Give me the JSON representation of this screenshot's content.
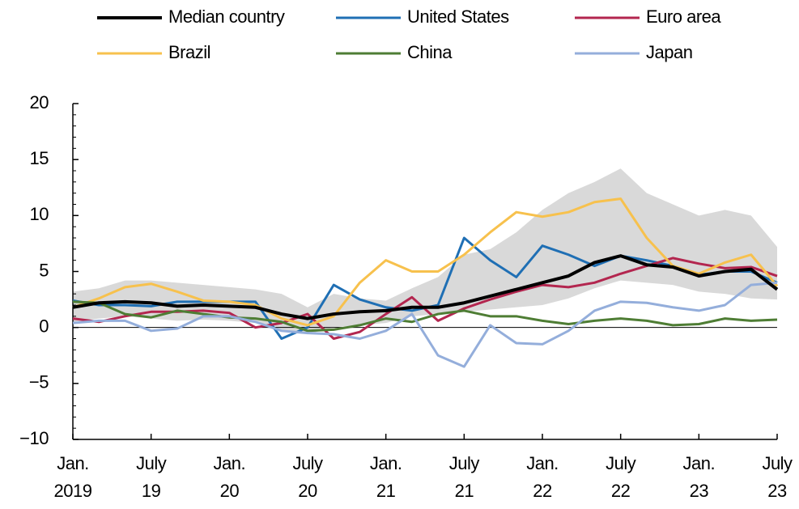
{
  "chart_data": {
    "type": "line",
    "x": [
      "2019-01",
      "2019-03",
      "2019-05",
      "2019-07",
      "2019-09",
      "2019-11",
      "2020-01",
      "2020-03",
      "2020-05",
      "2020-07",
      "2020-09",
      "2020-11",
      "2021-01",
      "2021-03",
      "2021-05",
      "2021-07",
      "2021-09",
      "2021-11",
      "2022-01",
      "2022-03",
      "2022-05",
      "2022-07",
      "2022-09",
      "2022-11",
      "2023-01",
      "2023-03",
      "2023-05",
      "2023-07"
    ],
    "band": {
      "color": "#d9d9d9",
      "upper": [
        3.2,
        3.5,
        4.2,
        4.2,
        4.0,
        3.8,
        3.6,
        3.4,
        3.0,
        1.8,
        3.0,
        2.6,
        2.4,
        3.5,
        4.5,
        6.5,
        7.0,
        8.5,
        10.5,
        12.0,
        13.0,
        14.2,
        12.0,
        11.0,
        10.0,
        10.5,
        10.0,
        7.2
      ],
      "lower": [
        0.5,
        0.8,
        1.0,
        0.8,
        0.6,
        0.7,
        0.6,
        0.4,
        -0.2,
        -0.6,
        0.0,
        0.2,
        0.4,
        1.0,
        1.2,
        1.4,
        1.6,
        1.8,
        2.0,
        2.6,
        3.5,
        4.2,
        4.0,
        3.8,
        3.2,
        3.0,
        2.6,
        2.5
      ]
    },
    "series": [
      {
        "name": "Median country",
        "color": "#000000",
        "values": [
          1.8,
          2.2,
          2.3,
          2.2,
          1.9,
          2.0,
          1.9,
          1.8,
          1.2,
          0.8,
          1.2,
          1.4,
          1.5,
          1.8,
          1.8,
          2.2,
          2.8,
          3.4,
          4.0,
          4.6,
          5.8,
          6.4,
          5.6,
          5.4,
          4.6,
          5.0,
          5.2,
          3.4
        ]
      },
      {
        "name": "United States",
        "color": "#1f6fb4",
        "values": [
          2.4,
          2.0,
          2.0,
          1.9,
          2.3,
          2.3,
          2.3,
          2.3,
          -1.0,
          0.0,
          3.8,
          2.5,
          1.8,
          1.5,
          2.0,
          8.0,
          6.0,
          4.5,
          7.3,
          6.5,
          5.5,
          6.4,
          6.0,
          5.5,
          4.7,
          5.0,
          5.0,
          4.0
        ]
      },
      {
        "name": "Euro area",
        "color": "#b3264f",
        "values": [
          0.8,
          0.5,
          1.0,
          1.4,
          1.4,
          1.5,
          1.3,
          0.0,
          0.4,
          1.2,
          -1.0,
          -0.4,
          1.2,
          2.7,
          0.6,
          1.7,
          2.5,
          3.2,
          3.8,
          3.6,
          4.0,
          4.8,
          5.5,
          6.2,
          5.7,
          5.3,
          5.4,
          4.6
        ]
      },
      {
        "name": "Brazil",
        "color": "#f7c14d",
        "values": [
          1.8,
          2.6,
          3.6,
          3.9,
          3.2,
          2.4,
          2.3,
          2.0,
          0.8,
          0.2,
          1.0,
          4.0,
          6.0,
          5.0,
          5.0,
          6.5,
          8.5,
          10.3,
          9.9,
          10.3,
          11.2,
          11.5,
          8.0,
          5.5,
          4.8,
          5.8,
          6.5,
          3.7
        ]
      },
      {
        "name": "China",
        "color": "#4e7d34",
        "values": [
          2.3,
          2.2,
          1.2,
          0.9,
          1.5,
          1.2,
          0.9,
          0.8,
          0.5,
          -0.3,
          -0.2,
          0.2,
          0.8,
          0.5,
          1.2,
          1.5,
          1.0,
          1.0,
          0.6,
          0.3,
          0.6,
          0.8,
          0.6,
          0.2,
          0.3,
          0.8,
          0.6,
          0.7
        ]
      },
      {
        "name": "Japan",
        "color": "#94aedb",
        "values": [
          0.4,
          0.6,
          0.6,
          -0.3,
          -0.1,
          1.0,
          1.0,
          0.5,
          -0.3,
          -0.5,
          -0.6,
          -1.0,
          -0.3,
          1.2,
          -2.5,
          -3.5,
          0.2,
          -1.4,
          -1.5,
          -0.3,
          1.5,
          2.3,
          2.2,
          1.8,
          1.5,
          2.0,
          3.8,
          4.0
        ]
      }
    ],
    "xlim": [
      "2019-01",
      "2023-07"
    ],
    "xticks": [
      {
        "value": "2019-01",
        "label": [
          "Jan.",
          "2019"
        ]
      },
      {
        "value": "2019-07",
        "label": [
          "July",
          "19"
        ]
      },
      {
        "value": "2020-01",
        "label": [
          "Jan.",
          "20"
        ]
      },
      {
        "value": "2020-07",
        "label": [
          "July",
          "20"
        ]
      },
      {
        "value": "2021-01",
        "label": [
          "Jan.",
          "21"
        ]
      },
      {
        "value": "2021-07",
        "label": [
          "July",
          "21"
        ]
      },
      {
        "value": "2022-01",
        "label": [
          "Jan.",
          "22"
        ]
      },
      {
        "value": "2022-07",
        "label": [
          "July",
          "22"
        ]
      },
      {
        "value": "2023-01",
        "label": [
          "Jan.",
          "23"
        ]
      },
      {
        "value": "2023-07",
        "label": [
          "July",
          "23"
        ]
      }
    ],
    "ylim": [
      -10,
      20
    ],
    "yticks": [
      {
        "value": -10,
        "label": "−10"
      },
      {
        "value": -5,
        "label": "−5"
      },
      0,
      5,
      10,
      15,
      20
    ],
    "zero_line": true
  }
}
